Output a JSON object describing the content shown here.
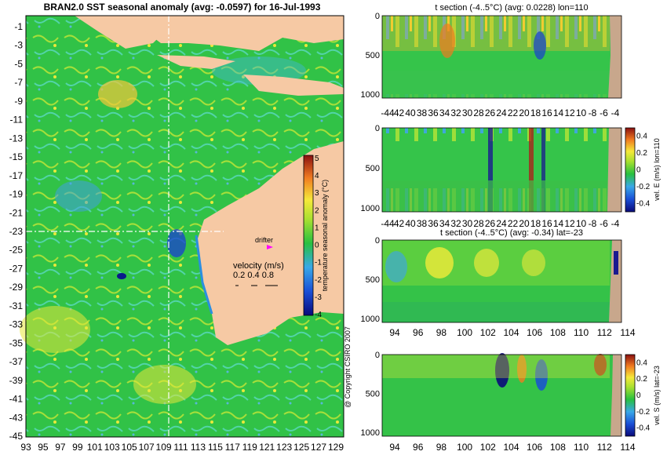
{
  "colors": {
    "land": "#f6c9a4",
    "section_land": "#c8a78c",
    "sea_base": "#31c247",
    "accent_warm": "#f5e93a",
    "accent_cool": "#39a8e8",
    "drifter_marker": "#ff00ff"
  },
  "map": {
    "title": "BRAN2.0 SST seasonal anomaly (avg: -0.0597) for 16-Jul-1993",
    "y_ticks": [
      "-1",
      "-3",
      "-5",
      "-7",
      "-9",
      "-11",
      "-13",
      "-15",
      "-17",
      "-19",
      "-21",
      "-23",
      "-25",
      "-27",
      "-29",
      "-31",
      "-33",
      "-35",
      "-37",
      "-39",
      "-41",
      "-43",
      "-45"
    ],
    "x_ticks": [
      "93",
      "95",
      "97",
      "99",
      "101",
      "103",
      "105",
      "107",
      "109",
      "111",
      "113",
      "115",
      "117",
      "119",
      "121",
      "123",
      "125",
      "127",
      "129"
    ],
    "drifter_label": "drifter",
    "velocity_title": "velocity (m/s)",
    "velocity_values": "0.2 0.4 0.8",
    "copyright": "@ Copyright CSIRO 2007"
  },
  "colorbar_map": {
    "label": "temperature seasonal anomaly (°C)",
    "ticks": [
      "5",
      "4",
      "3",
      "2",
      "1",
      "0",
      "-1",
      "-2",
      "-3",
      "-4"
    ]
  },
  "panels": {
    "p1": {
      "title": "t section (-4..5°C) (avg: 0.0228) lon=110",
      "y_ticks": [
        "0",
        "500",
        "1000"
      ],
      "x_ticks": [
        "-44",
        "42",
        "40",
        "38",
        "36",
        "34",
        "32",
        "30",
        "28",
        "26",
        "24",
        "22",
        "20",
        "18",
        "16",
        "14",
        "12",
        "10",
        "-8",
        "-6",
        "-4"
      ]
    },
    "p2": {
      "title": "",
      "y_ticks": [
        "0",
        "500",
        "1000"
      ],
      "x_ticks": [
        "-44",
        "42",
        "40",
        "38",
        "36",
        "34",
        "32",
        "30",
        "28",
        "26",
        "24",
        "22",
        "20",
        "18",
        "16",
        "14",
        "12",
        "10",
        "-8",
        "-6",
        "-4"
      ],
      "cb_label": "vel. E (m/s) lon=110",
      "cb_ticks": [
        "0.4",
        "0.2",
        "0",
        "-0.2",
        "-0.4"
      ]
    },
    "p3": {
      "title": "t section (-4..5°C) (avg: -0.34) lat=-23",
      "y_ticks": [
        "0",
        "500",
        "1000"
      ],
      "x_ticks": [
        "94",
        "96",
        "98",
        "100",
        "102",
        "104",
        "106",
        "108",
        "110",
        "112",
        "114"
      ]
    },
    "p4": {
      "title": "",
      "y_ticks": [
        "0",
        "500",
        "1000"
      ],
      "x_ticks": [
        "94",
        "96",
        "98",
        "100",
        "102",
        "104",
        "106",
        "108",
        "110",
        "112",
        "114"
      ],
      "cb_label": "vel. S (m/s) lat=-23",
      "cb_ticks": [
        "0.4",
        "0.2",
        "0",
        "-0.2",
        "-0.4"
      ]
    }
  },
  "chart_data": [
    {
      "type": "heatmap",
      "title": "BRAN2.0 SST seasonal anomaly (avg: -0.0597) for 16-Jul-1993",
      "xlabel": "",
      "ylabel": "",
      "xlim": [
        93,
        130
      ],
      "ylim": [
        -45,
        0
      ],
      "colorbar": {
        "label": "temperature seasonal anomaly (°C)",
        "range": [
          -4,
          5
        ]
      }
    },
    {
      "type": "heatmap",
      "title": "t section (-4..5°C) (avg: 0.0228) lon=110",
      "ylim": [
        1050,
        0
      ]
    },
    {
      "type": "heatmap",
      "title": "",
      "ylim": [
        1050,
        0
      ],
      "colorbar": {
        "label": "vel. E (m/s) lon=110",
        "range": [
          -0.5,
          0.5
        ]
      }
    },
    {
      "type": "heatmap",
      "title": "t section (-4..5°C) (avg: -0.34) lat=-23",
      "ylim": [
        1050,
        0
      ]
    },
    {
      "type": "heatmap",
      "title": "",
      "ylim": [
        1050,
        0
      ],
      "colorbar": {
        "label": "vel. S (m/s) lat=-23",
        "range": [
          -0.5,
          0.5
        ]
      }
    }
  ]
}
